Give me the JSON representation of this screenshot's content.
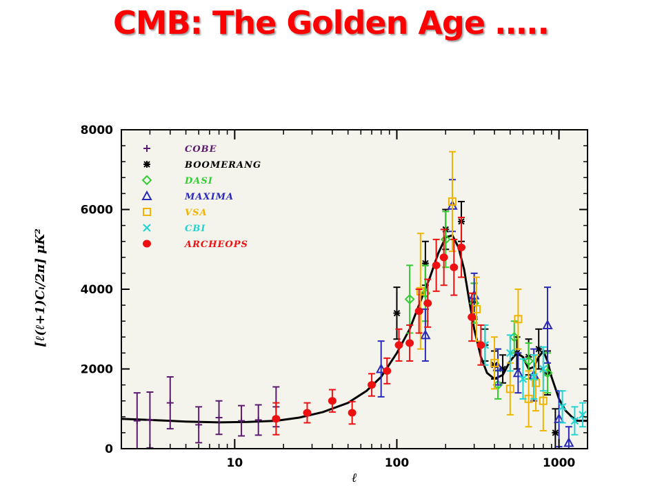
{
  "slide": {
    "title": "CMB: The Golden Age ….."
  },
  "chart_data": {
    "type": "scatter",
    "xlabel": "ℓ",
    "ylabel": "[ℓ(ℓ+1)Cₗ/2π] μK²",
    "xscale": "log",
    "xlim": [
      2,
      1500
    ],
    "ylim": [
      0,
      8000
    ],
    "x_ticks": [
      10,
      100,
      1000
    ],
    "y_ticks": [
      0,
      2000,
      4000,
      6000,
      8000
    ],
    "legend_position": "top-left",
    "colors": {
      "COBE": "#5a1a6e",
      "BOOMERANG": "#000000",
      "DASI": "#33cc33",
      "MAXIMA": "#2a2ab8",
      "VSA": "#f0b400",
      "CBI": "#22d4d4",
      "ARCHEOPS": "#ee1111",
      "model": "#000000"
    },
    "model_curve": {
      "x": [
        2,
        3,
        5,
        8,
        12,
        18,
        25,
        35,
        50,
        65,
        80,
        100,
        120,
        140,
        160,
        180,
        200,
        220,
        240,
        260,
        280,
        300,
        330,
        360,
        400,
        450,
        500,
        550,
        600,
        650,
        700,
        750,
        800,
        850,
        900,
        1000,
        1100,
        1200,
        1300,
        1500
      ],
      "y": [
        750,
        720,
        680,
        660,
        670,
        700,
        780,
        920,
        1150,
        1450,
        1800,
        2400,
        3000,
        3700,
        4300,
        4900,
        5300,
        5350,
        5050,
        4500,
        3700,
        3000,
        2300,
        1900,
        1750,
        1850,
        2200,
        2400,
        2300,
        2000,
        2050,
        2300,
        2450,
        2200,
        1800,
        1250,
        950,
        800,
        700,
        700
      ]
    },
    "series": [
      {
        "name": "COBE",
        "marker": "plus",
        "points": [
          {
            "x": 2.5,
            "y": 700,
            "err": 700
          },
          {
            "x": 3,
            "y": 720,
            "err": 700
          },
          {
            "x": 4,
            "y": 1150,
            "err": 650
          },
          {
            "x": 6,
            "y": 600,
            "err": 450
          },
          {
            "x": 8,
            "y": 780,
            "err": 420
          },
          {
            "x": 11,
            "y": 700,
            "err": 380
          },
          {
            "x": 14,
            "y": 720,
            "err": 380
          },
          {
            "x": 18,
            "y": 1050,
            "err": 500
          }
        ]
      },
      {
        "name": "BOOMERANG",
        "marker": "asterisk",
        "points": [
          {
            "x": 100,
            "y": 3400,
            "err": 650
          },
          {
            "x": 150,
            "y": 4650,
            "err": 550
          },
          {
            "x": 200,
            "y": 5500,
            "err": 500
          },
          {
            "x": 250,
            "y": 5700,
            "err": 500
          },
          {
            "x": 300,
            "y": 3700,
            "err": 450
          },
          {
            "x": 350,
            "y": 2600,
            "err": 400
          },
          {
            "x": 400,
            "y": 2100,
            "err": 350
          },
          {
            "x": 450,
            "y": 2000,
            "err": 350
          },
          {
            "x": 550,
            "y": 2400,
            "err": 400
          },
          {
            "x": 650,
            "y": 2300,
            "err": 450
          },
          {
            "x": 750,
            "y": 2500,
            "err": 500
          },
          {
            "x": 850,
            "y": 1900,
            "err": 550
          },
          {
            "x": 950,
            "y": 400,
            "err": 600
          }
        ]
      },
      {
        "name": "DASI",
        "marker": "diamond",
        "points": [
          {
            "x": 120,
            "y": 3750,
            "err": 850
          },
          {
            "x": 150,
            "y": 3900,
            "err": 700
          },
          {
            "x": 200,
            "y": 5250,
            "err": 700
          },
          {
            "x": 300,
            "y": 3650,
            "err": 500
          },
          {
            "x": 420,
            "y": 1600,
            "err": 350
          },
          {
            "x": 530,
            "y": 2800,
            "err": 400
          },
          {
            "x": 650,
            "y": 2200,
            "err": 450
          },
          {
            "x": 850,
            "y": 1900,
            "err": 500
          }
        ]
      },
      {
        "name": "MAXIMA",
        "marker": "triangle",
        "points": [
          {
            "x": 80,
            "y": 2000,
            "err": 700
          },
          {
            "x": 150,
            "y": 2850,
            "err": 650
          },
          {
            "x": 220,
            "y": 6100,
            "err": 650
          },
          {
            "x": 300,
            "y": 3850,
            "err": 550
          },
          {
            "x": 420,
            "y": 2050,
            "err": 450
          },
          {
            "x": 560,
            "y": 1900,
            "err": 500
          },
          {
            "x": 700,
            "y": 1850,
            "err": 650
          },
          {
            "x": 850,
            "y": 3100,
            "err": 950
          },
          {
            "x": 1000,
            "y": 750,
            "err": 700
          },
          {
            "x": 1150,
            "y": 150,
            "err": 400
          }
        ]
      },
      {
        "name": "VSA",
        "marker": "square",
        "points": [
          {
            "x": 140,
            "y": 3950,
            "err": 1450
          },
          {
            "x": 220,
            "y": 6200,
            "err": 1250
          },
          {
            "x": 310,
            "y": 3500,
            "err": 800
          },
          {
            "x": 400,
            "y": 2150,
            "err": 650
          },
          {
            "x": 500,
            "y": 1500,
            "err": 650
          },
          {
            "x": 560,
            "y": 3250,
            "err": 750
          },
          {
            "x": 650,
            "y": 1250,
            "err": 700
          },
          {
            "x": 720,
            "y": 1650,
            "err": 700
          },
          {
            "x": 800,
            "y": 1200,
            "err": 750
          }
        ]
      },
      {
        "name": "CBI",
        "marker": "cross",
        "points": [
          {
            "x": 350,
            "y": 2600,
            "err": 500
          },
          {
            "x": 500,
            "y": 2400,
            "err": 450
          },
          {
            "x": 600,
            "y": 1750,
            "err": 500
          },
          {
            "x": 700,
            "y": 1800,
            "err": 550
          },
          {
            "x": 800,
            "y": 2000,
            "err": 550
          },
          {
            "x": 1050,
            "y": 1050,
            "err": 400
          },
          {
            "x": 1250,
            "y": 700,
            "err": 350
          },
          {
            "x": 1400,
            "y": 850,
            "err": 300
          }
        ]
      },
      {
        "name": "ARCHEOPS",
        "marker": "circle",
        "points": [
          {
            "x": 18,
            "y": 750,
            "err": 400
          },
          {
            "x": 28,
            "y": 900,
            "err": 250
          },
          {
            "x": 40,
            "y": 1200,
            "err": 280
          },
          {
            "x": 53,
            "y": 900,
            "err": 280
          },
          {
            "x": 70,
            "y": 1600,
            "err": 280
          },
          {
            "x": 87,
            "y": 1950,
            "err": 320
          },
          {
            "x": 103,
            "y": 2600,
            "err": 400
          },
          {
            "x": 120,
            "y": 2650,
            "err": 450
          },
          {
            "x": 137,
            "y": 3450,
            "err": 550
          },
          {
            "x": 155,
            "y": 3650,
            "err": 600
          },
          {
            "x": 175,
            "y": 4600,
            "err": 650
          },
          {
            "x": 195,
            "y": 4800,
            "err": 700
          },
          {
            "x": 225,
            "y": 4550,
            "err": 700
          },
          {
            "x": 250,
            "y": 5050,
            "err": 750
          },
          {
            "x": 290,
            "y": 3300,
            "err": 600
          },
          {
            "x": 330,
            "y": 2600,
            "err": 500
          }
        ]
      }
    ]
  }
}
